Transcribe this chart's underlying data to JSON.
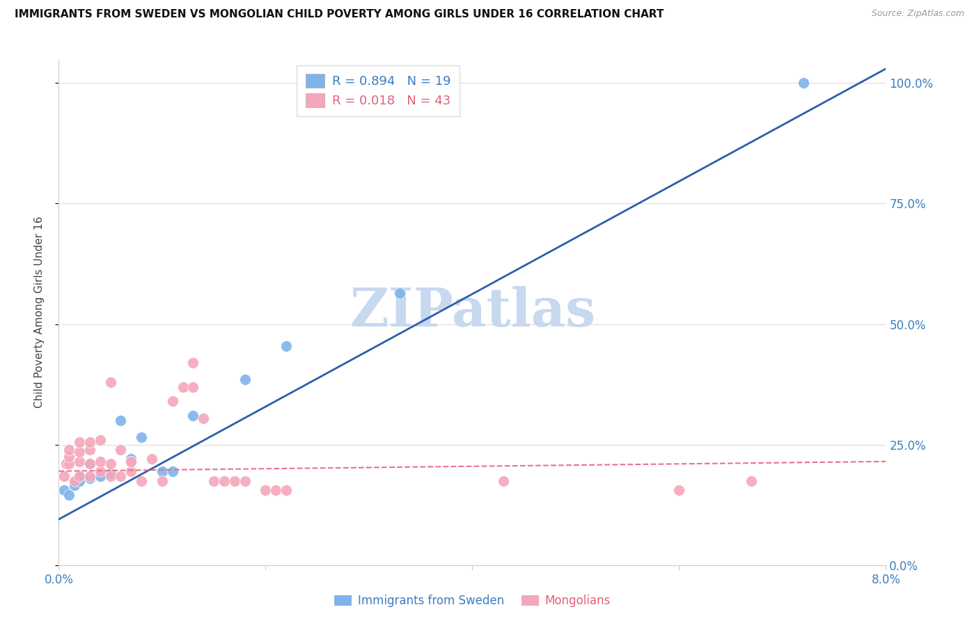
{
  "title": "IMMIGRANTS FROM SWEDEN VS MONGOLIAN CHILD POVERTY AMONG GIRLS UNDER 16 CORRELATION CHART",
  "source": "Source: ZipAtlas.com",
  "ylabel": "Child Poverty Among Girls Under 16",
  "x_min": 0.0,
  "x_max": 0.08,
  "y_min": 0.0,
  "y_max": 1.05,
  "yticks": [
    0.0,
    0.25,
    0.5,
    0.75,
    1.0
  ],
  "ytick_labels": [
    "0.0%",
    "25.0%",
    "50.0%",
    "75.0%",
    "100.0%"
  ],
  "xtick_positions": [
    0.0,
    0.02,
    0.04,
    0.06,
    0.08
  ],
  "blue_R": 0.894,
  "blue_N": 19,
  "pink_R": 0.018,
  "pink_N": 43,
  "blue_color": "#7EB4EA",
  "pink_color": "#F4A7B9",
  "blue_line_color": "#2B5EAB",
  "pink_line_color": "#E87090",
  "watermark": "ZIPatlas",
  "watermark_color": "#C8D8EE",
  "blue_scatter_x": [
    0.0005,
    0.001,
    0.0015,
    0.002,
    0.002,
    0.003,
    0.003,
    0.004,
    0.005,
    0.006,
    0.007,
    0.008,
    0.01,
    0.011,
    0.013,
    0.018,
    0.022,
    0.033,
    0.072
  ],
  "blue_scatter_y": [
    0.155,
    0.145,
    0.165,
    0.175,
    0.185,
    0.18,
    0.21,
    0.185,
    0.19,
    0.3,
    0.22,
    0.265,
    0.195,
    0.195,
    0.31,
    0.385,
    0.455,
    0.565,
    1.0
  ],
  "pink_scatter_x": [
    0.0005,
    0.0007,
    0.001,
    0.001,
    0.001,
    0.0015,
    0.002,
    0.002,
    0.002,
    0.002,
    0.003,
    0.003,
    0.003,
    0.003,
    0.004,
    0.004,
    0.004,
    0.005,
    0.005,
    0.005,
    0.006,
    0.006,
    0.007,
    0.007,
    0.007,
    0.008,
    0.009,
    0.01,
    0.011,
    0.012,
    0.013,
    0.013,
    0.014,
    0.015,
    0.016,
    0.017,
    0.018,
    0.02,
    0.021,
    0.022,
    0.043,
    0.06,
    0.067
  ],
  "pink_scatter_y": [
    0.185,
    0.21,
    0.21,
    0.225,
    0.24,
    0.175,
    0.185,
    0.215,
    0.235,
    0.255,
    0.185,
    0.21,
    0.24,
    0.255,
    0.195,
    0.215,
    0.26,
    0.185,
    0.21,
    0.38,
    0.185,
    0.24,
    0.195,
    0.215,
    0.215,
    0.175,
    0.22,
    0.175,
    0.34,
    0.37,
    0.37,
    0.42,
    0.305,
    0.175,
    0.175,
    0.175,
    0.175,
    0.155,
    0.155,
    0.155,
    0.175,
    0.155,
    0.175
  ],
  "blue_line_x": [
    0.0,
    0.08
  ],
  "blue_line_y": [
    0.095,
    1.03
  ],
  "pink_line_x": [
    0.0,
    0.08
  ],
  "pink_line_y": [
    0.195,
    0.215
  ]
}
